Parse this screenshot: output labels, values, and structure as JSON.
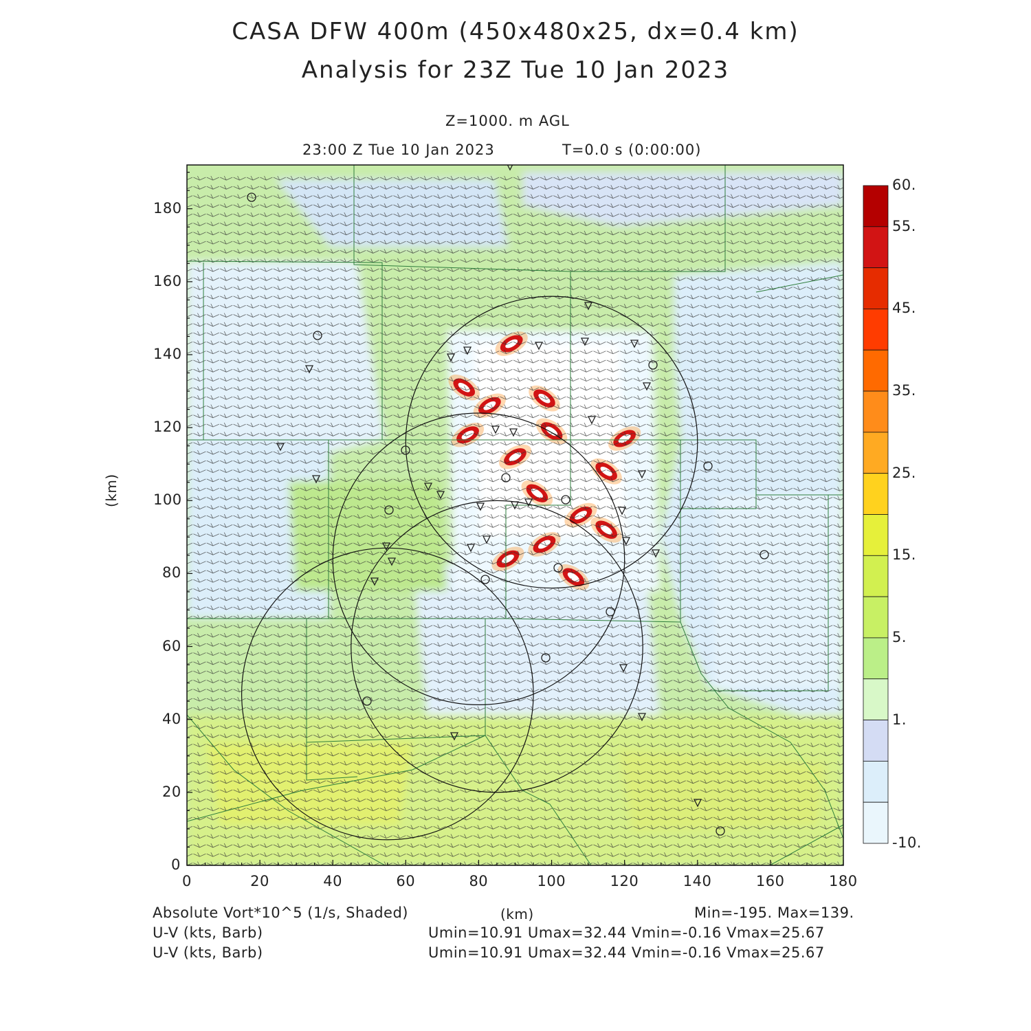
{
  "header": {
    "title_line1": "CASA DFW 400m (450x480x25, dx=0.4 km)",
    "title_line2": "Analysis for 23Z Tue 10 Jan 2023",
    "level": "Z=1000. m AGL",
    "valid_time": "23:00 Z Tue 10 Jan 2023",
    "forecast_time": "T=0.0 s (0:00:00)"
  },
  "axes": {
    "ylabel": "(km)",
    "xlabel": "(km)",
    "xlim": [
      0,
      180
    ],
    "ylim": [
      0,
      192
    ],
    "xticks": [
      "0",
      "20",
      "40",
      "60",
      "80",
      "100",
      "120",
      "140",
      "160",
      "180"
    ],
    "yticks": [
      "0",
      "20",
      "40",
      "60",
      "80",
      "100",
      "120",
      "140",
      "160",
      "180"
    ]
  },
  "colorbar": {
    "labels": [
      "60.",
      "55.",
      "45.",
      "35.",
      "25.",
      "15.",
      "5.",
      "1.",
      "-10."
    ],
    "colors": [
      "#b40000",
      "#d21414",
      "#e62c00",
      "#ff3c00",
      "#ff6a00",
      "#ff8c1a",
      "#ffaa22",
      "#ffd21e",
      "#e6f03a",
      "#d2f050",
      "#c8f064",
      "#bbef88",
      "#d8f8c8",
      "#d4dcf4",
      "#dceefa",
      "#eaf6fc"
    ]
  },
  "footer": {
    "field1": "Absolute Vort*10^5 (1/s, Shaded)",
    "field2": "U-V (kts, Barb)",
    "field3": "U-V (kts, Barb)",
    "xunit": "(km)",
    "minmax": "Min=-195. Max=139.",
    "uv_stats_1": "Umin=10.91 Umax=32.44 Vmin=-0.16 Vmax=25.67",
    "uv_stats_2": "Umin=10.91 Umax=32.44 Vmin=-0.16 Vmax=25.67"
  },
  "map_data": {
    "field_range": {
      "min": -195,
      "max": 139
    },
    "radar_rings": [
      {
        "center_km": [
          100,
          116
        ],
        "radius_km": 40
      },
      {
        "center_km": [
          80,
          84
        ],
        "radius_km": 40
      },
      {
        "center_km": [
          85,
          60
        ],
        "radius_km": 40
      },
      {
        "center_km": [
          55,
          47
        ],
        "radius_km": 40
      }
    ],
    "vorticity_maxima_km": [
      [
        89,
        143
      ],
      [
        76,
        131
      ],
      [
        83,
        126
      ],
      [
        98,
        128
      ],
      [
        77,
        118
      ],
      [
        100,
        119
      ],
      [
        90,
        112
      ],
      [
        96,
        102
      ],
      [
        108,
        96
      ],
      [
        115,
        92
      ],
      [
        98,
        88
      ],
      [
        106,
        79
      ],
      [
        120,
        117
      ],
      [
        115,
        108
      ],
      [
        88,
        84
      ]
    ]
  }
}
